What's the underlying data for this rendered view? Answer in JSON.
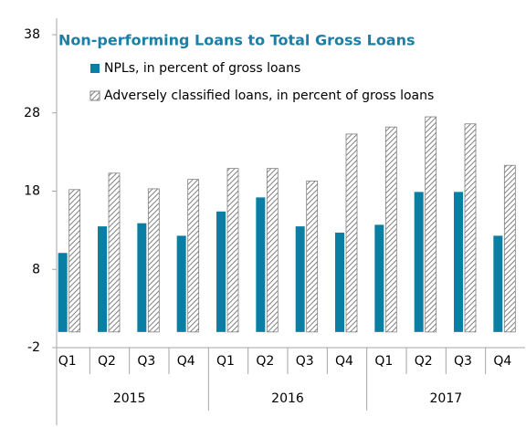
{
  "chart_data": {
    "type": "bar",
    "title": "Non-performing Loans to Total Gross Loans",
    "categories": [
      "Q1",
      "Q2",
      "Q3",
      "Q4",
      "Q1",
      "Q2",
      "Q3",
      "Q4",
      "Q1",
      "Q2",
      "Q3",
      "Q4"
    ],
    "groups": [
      "2015",
      "2016",
      "2017"
    ],
    "series": [
      {
        "name": "NPLs, in percent of gross loans",
        "color": "#0b7ea3",
        "values": [
          10.1,
          13.5,
          13.9,
          12.3,
          15.4,
          17.2,
          13.5,
          12.7,
          13.7,
          17.9,
          17.9,
          12.3
        ]
      },
      {
        "name": "Adversely classified loans, in percent of gross loans",
        "color": "#808080",
        "fill": "hatch",
        "values": [
          18.2,
          20.3,
          18.3,
          19.5,
          20.9,
          20.9,
          19.3,
          25.3,
          26.2,
          27.5,
          26.6,
          21.3
        ]
      }
    ],
    "ylim": [
      -2,
      38
    ],
    "yticks": [
      -2,
      8,
      18,
      28,
      38
    ]
  }
}
